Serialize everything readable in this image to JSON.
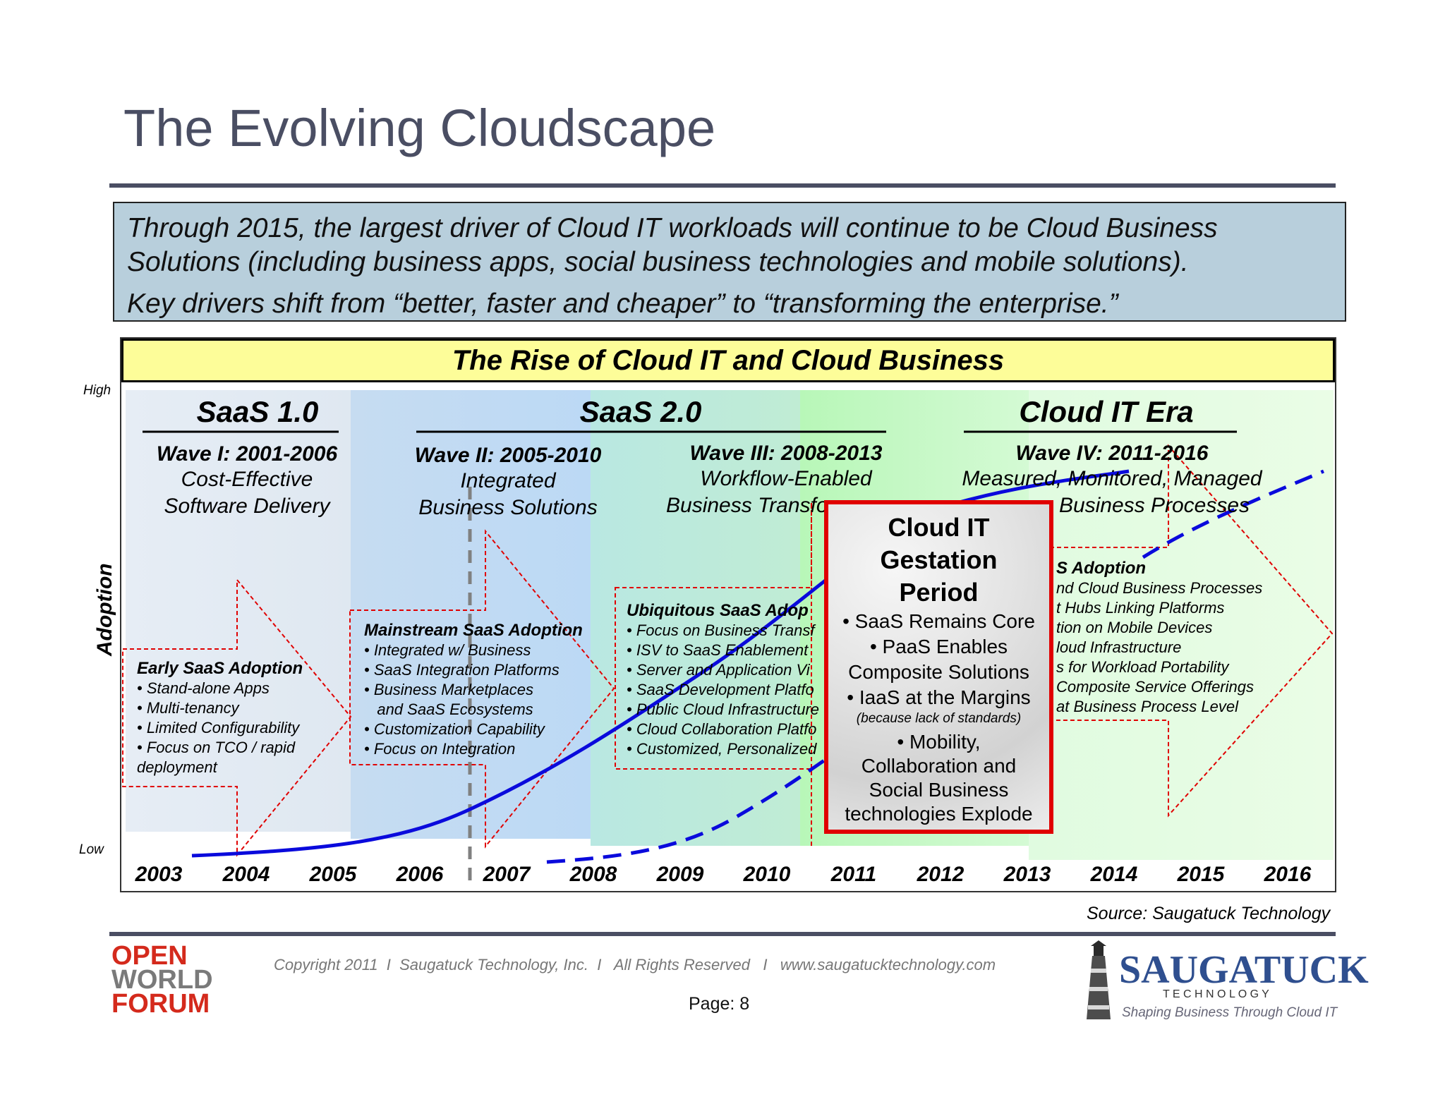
{
  "title": "The Evolving Cloudscape",
  "callout": {
    "lines": [
      "Through 2015, the largest driver of Cloud IT workloads will continue to be Cloud Business",
      "Solutions (including business apps, social business technologies and mobile solutions).",
      "Key drivers shift from “better, faster and cheaper” to “transforming the enterprise.”"
    ]
  },
  "banner": "The Rise of Cloud IT and Cloud Business",
  "axis": {
    "ylabel": "Adoption",
    "high": "High",
    "low": "Low",
    "years": [
      "2003",
      "2004",
      "2005",
      "2006",
      "2007",
      "2008",
      "2009",
      "2010",
      "2011",
      "2012",
      "2013",
      "2014",
      "2015",
      "2016"
    ]
  },
  "eras": {
    "saas1": "SaaS 1.0",
    "saas2": "SaaS 2.0",
    "cloud_it": "Cloud IT Era"
  },
  "waves": [
    {
      "title": "Wave I: 2001-2006",
      "desc": [
        "Cost-Effective",
        "Software Delivery"
      ]
    },
    {
      "title": "Wave II: 2005-2010",
      "desc": [
        "Integrated",
        "Business Solutions"
      ]
    },
    {
      "title": "Wave III: 2008-2013",
      "desc": [
        "Workflow-Enabled",
        "Business Transfo"
      ]
    },
    {
      "title": "Wave IV: 2011-2016",
      "desc": [
        "Measured, Monitored, Managed",
        "Business Processes"
      ]
    }
  ],
  "boxes": {
    "early": {
      "title": "Early SaaS Adoption",
      "bullets": [
        "• Stand-alone Apps",
        "• Multi-tenancy",
        "• Limited Configurability",
        "• Focus on TCO / rapid",
        "deployment"
      ]
    },
    "mainstream": {
      "title": "Mainstream SaaS Adoption",
      "bullets": [
        "• Integrated w/ Business",
        "• SaaS Integration Platforms",
        "• Business Marketplaces",
        "   and SaaS Ecosystems",
        "• Customization Capability",
        "• Focus on Integration"
      ]
    },
    "ubiquitous": {
      "title": "Ubiquitous SaaS Adop",
      "bullets": [
        "• Focus on Business Transf",
        "• ISV to SaaS Enablement",
        "• Server and Application Vi",
        "• SaaS Development Platfo",
        "• Public Cloud Infrastructure",
        "• Cloud Collaboration Platfo",
        "• Customized, Personalized"
      ]
    },
    "wave4": {
      "title": "S Adoption",
      "bullets": [
        "nd Cloud Business Processes",
        "t Hubs Linking Platforms",
        "tion on Mobile Devices",
        "loud Infrastructure",
        "s for Workload Portability",
        "Composite Service Offerings",
        "at Business Process Level"
      ]
    }
  },
  "gestation": {
    "title": [
      "Cloud IT",
      "Gestation",
      "Period"
    ],
    "lines": [
      "• SaaS Remains Core",
      "• PaaS Enables",
      "Composite Solutions",
      "• IaaS at the Margins"
    ],
    "note": "(because lack of standards)",
    "tail": [
      "• Mobility,",
      "Collaboration and",
      "Social Business",
      "technologies Explode"
    ]
  },
  "source": "Source: Saugatuck Technology",
  "footer": {
    "copyright": "Copyright 2011  I  Saugatuck Technology, Inc.  I   All Rights Reserved   I   www.saugatucktechnology.com",
    "page": "Page:  8",
    "owf": [
      "OPEN",
      "WORLD",
      "FORUM"
    ],
    "logo_name": "SAUGATUCK",
    "logo_sub": "T E C H N O L O G Y",
    "logo_tag": "Shaping Business Through Cloud IT"
  },
  "colors": {
    "title": "#4a4e63",
    "callout_bg": "#b8cfdc",
    "banner_bg": "#fdfd99",
    "curve": "#0a0adc",
    "arrow": "#e00000",
    "gestation_border": "#e00000"
  }
}
